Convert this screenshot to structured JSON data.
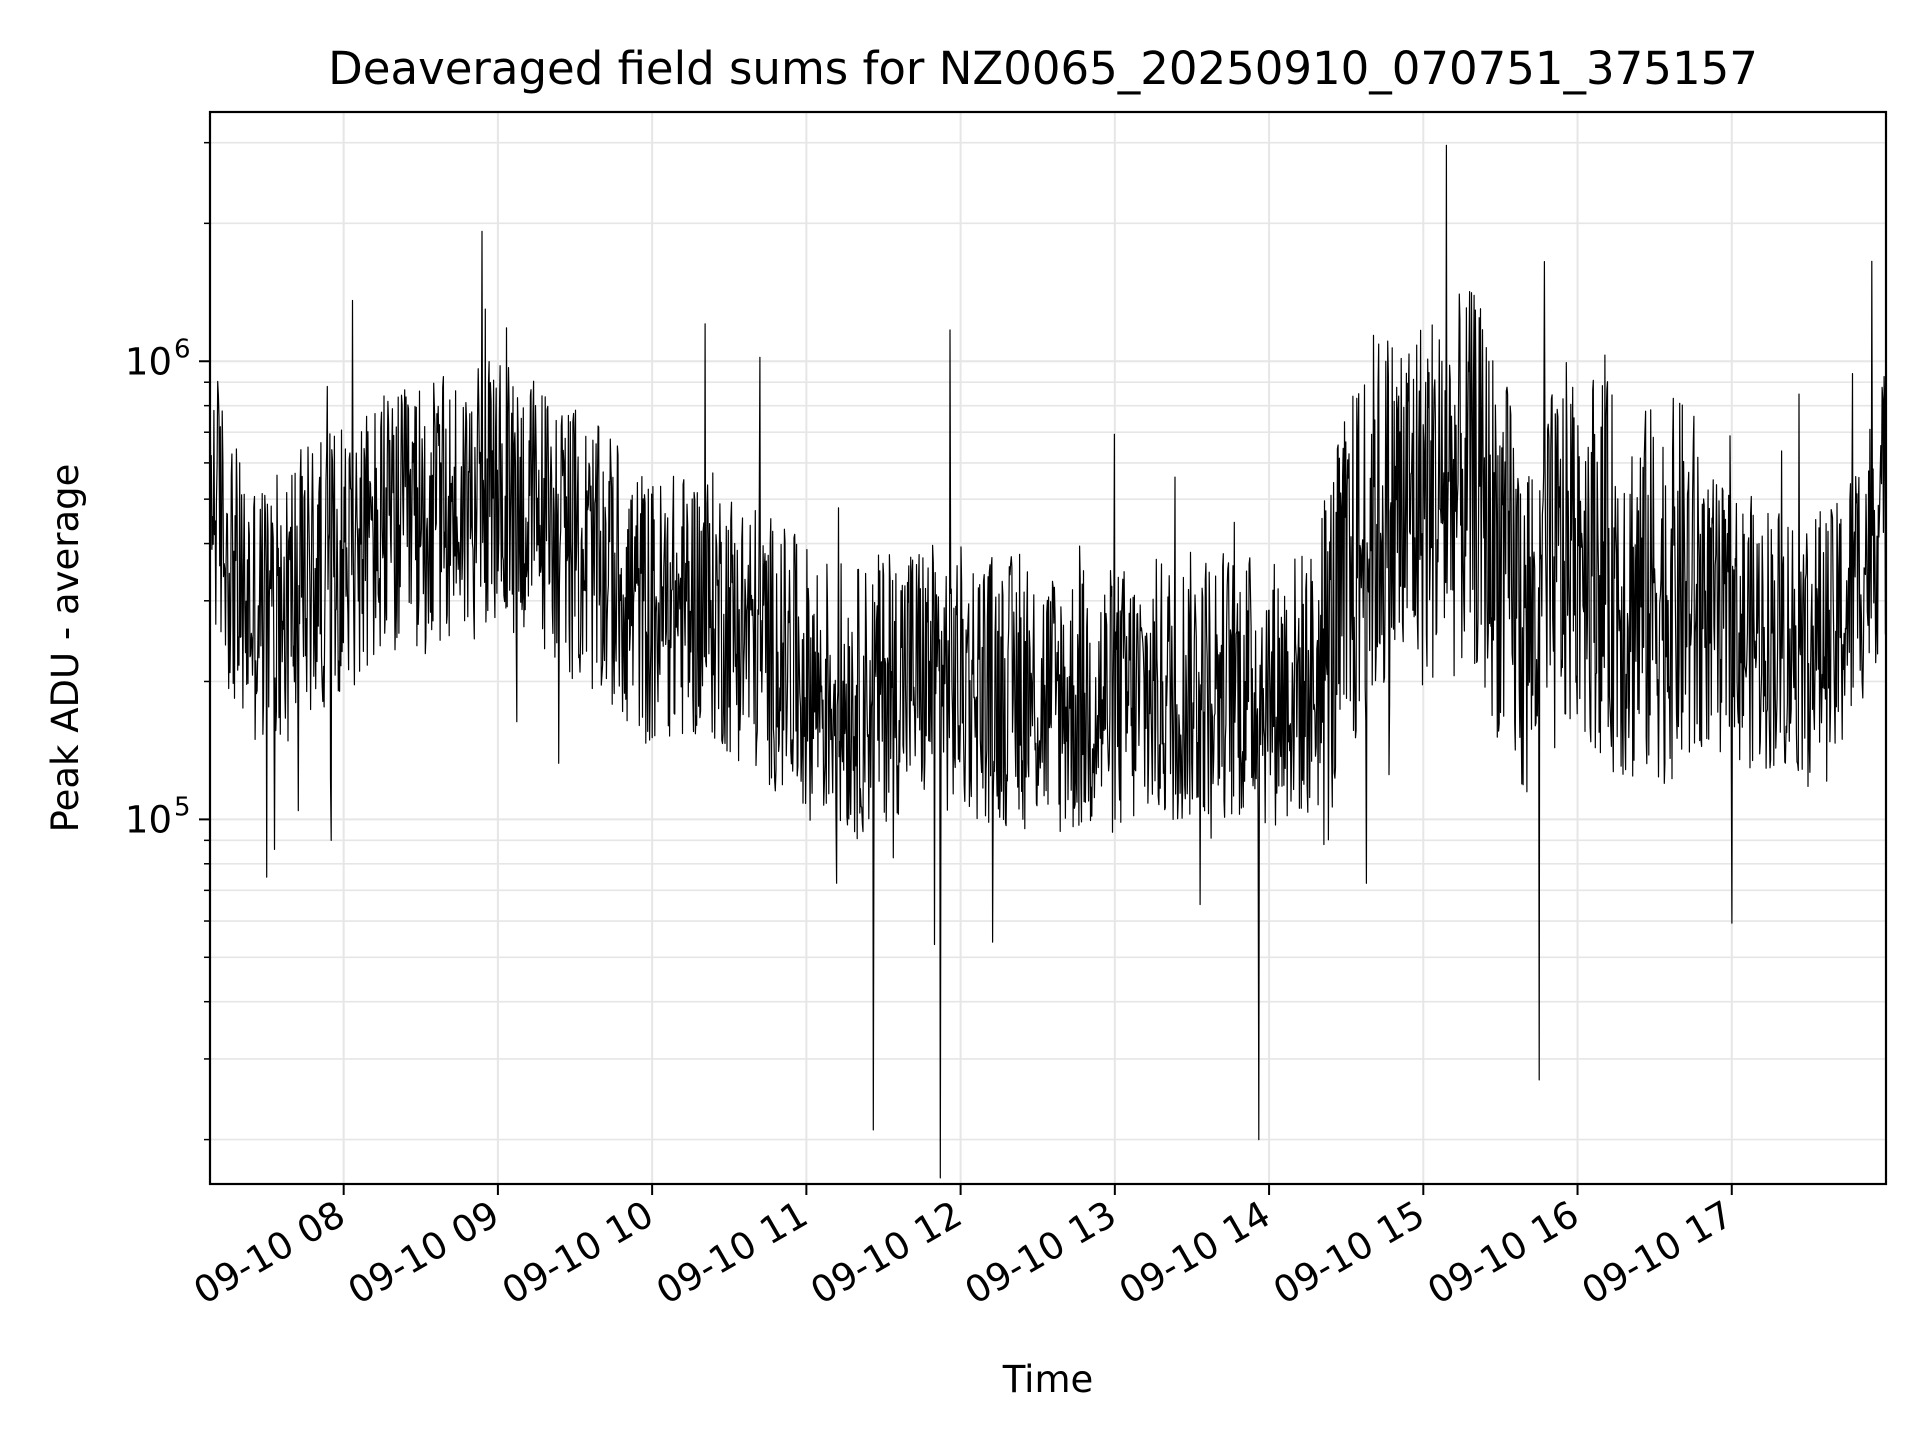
{
  "chart_data": {
    "type": "line",
    "title": "Deaveraged field sums for NZ0065_20250910_070751_375157",
    "xlabel": "Time",
    "ylabel": "Peak ADU - average",
    "yscale": "log",
    "grid": true,
    "line_color": "#000000",
    "grid_color": "#e6e6e6",
    "xlim": [
      "2025-09-10 07:08",
      "2025-09-10 18:00"
    ],
    "ylim": [
      16000,
      3500000
    ],
    "x_ticks": [
      "09-10 08",
      "09-10 09",
      "09-10 10",
      "09-10 11",
      "09-10 12",
      "09-10 13",
      "09-10 14",
      "09-10 15",
      "09-10 16",
      "09-10 17"
    ],
    "x_tick_values": [
      "2025-09-10 08:00",
      "2025-09-10 09:00",
      "2025-09-10 10:00",
      "2025-09-10 11:00",
      "2025-09-10 12:00",
      "2025-09-10 13:00",
      "2025-09-10 14:00",
      "2025-09-10 15:00",
      "2025-09-10 16:00",
      "2025-09-10 17:00"
    ],
    "y_ticks": [
      {
        "value": 100000,
        "base": "10",
        "exp": "5"
      },
      {
        "value": 1000000,
        "base": "10",
        "exp": "6"
      }
    ],
    "series": [
      {
        "x": [
          "2025-09-10 07:08",
          "2025-09-10 07:20",
          "2025-09-10 07:30",
          "2025-09-10 07:40",
          "2025-09-10 07:50",
          "2025-09-10 08:00",
          "2025-09-10 08:15",
          "2025-09-10 08:30",
          "2025-09-10 08:45",
          "2025-09-10 09:00",
          "2025-09-10 09:15",
          "2025-09-10 09:30",
          "2025-09-10 09:45",
          "2025-09-10 10:00",
          "2025-09-10 10:20",
          "2025-09-10 10:40",
          "2025-09-10 11:00",
          "2025-09-10 11:20",
          "2025-09-10 11:40",
          "2025-09-10 12:00",
          "2025-09-10 12:20",
          "2025-09-10 12:40",
          "2025-09-10 13:00",
          "2025-09-10 13:20",
          "2025-09-10 13:40",
          "2025-09-10 14:00",
          "2025-09-10 14:20",
          "2025-09-10 14:40",
          "2025-09-10 15:00",
          "2025-09-10 15:20",
          "2025-09-10 15:40",
          "2025-09-10 16:00",
          "2025-09-10 16:20",
          "2025-09-10 16:40",
          "2025-09-10 17:00",
          "2025-09-10 17:20",
          "2025-09-10 17:40",
          "2025-09-10 18:00"
        ],
        "y": [
          560000,
          300000,
          280000,
          320000,
          340000,
          380000,
          420000,
          450000,
          480000,
          510000,
          470000,
          400000,
          340000,
          280000,
          300000,
          250000,
          200000,
          180000,
          210000,
          200000,
          190000,
          180000,
          180000,
          190000,
          200000,
          190000,
          200000,
          450000,
          500000,
          550000,
          260000,
          420000,
          300000,
          320000,
          260000,
          250000,
          240000,
          500000
        ]
      }
    ],
    "extremes": [
      {
        "x": "2025-09-10 07:33",
        "y": 86000
      },
      {
        "x": "2025-09-10 08:55",
        "y": 1300000
      },
      {
        "x": "2025-09-10 10:42",
        "y": 1020000
      },
      {
        "x": "2025-09-10 11:26",
        "y": 21000
      },
      {
        "x": "2025-09-10 11:52",
        "y": 16500
      },
      {
        "x": "2025-09-10 11:56",
        "y": 1170000
      },
      {
        "x": "2025-09-10 13:56",
        "y": 20000
      },
      {
        "x": "2025-09-10 15:09",
        "y": 2960000
      },
      {
        "x": "2025-09-10 15:45",
        "y": 27000
      },
      {
        "x": "2025-09-10 15:47",
        "y": 1650000
      },
      {
        "x": "2025-09-10 17:47",
        "y": 940000
      }
    ]
  }
}
